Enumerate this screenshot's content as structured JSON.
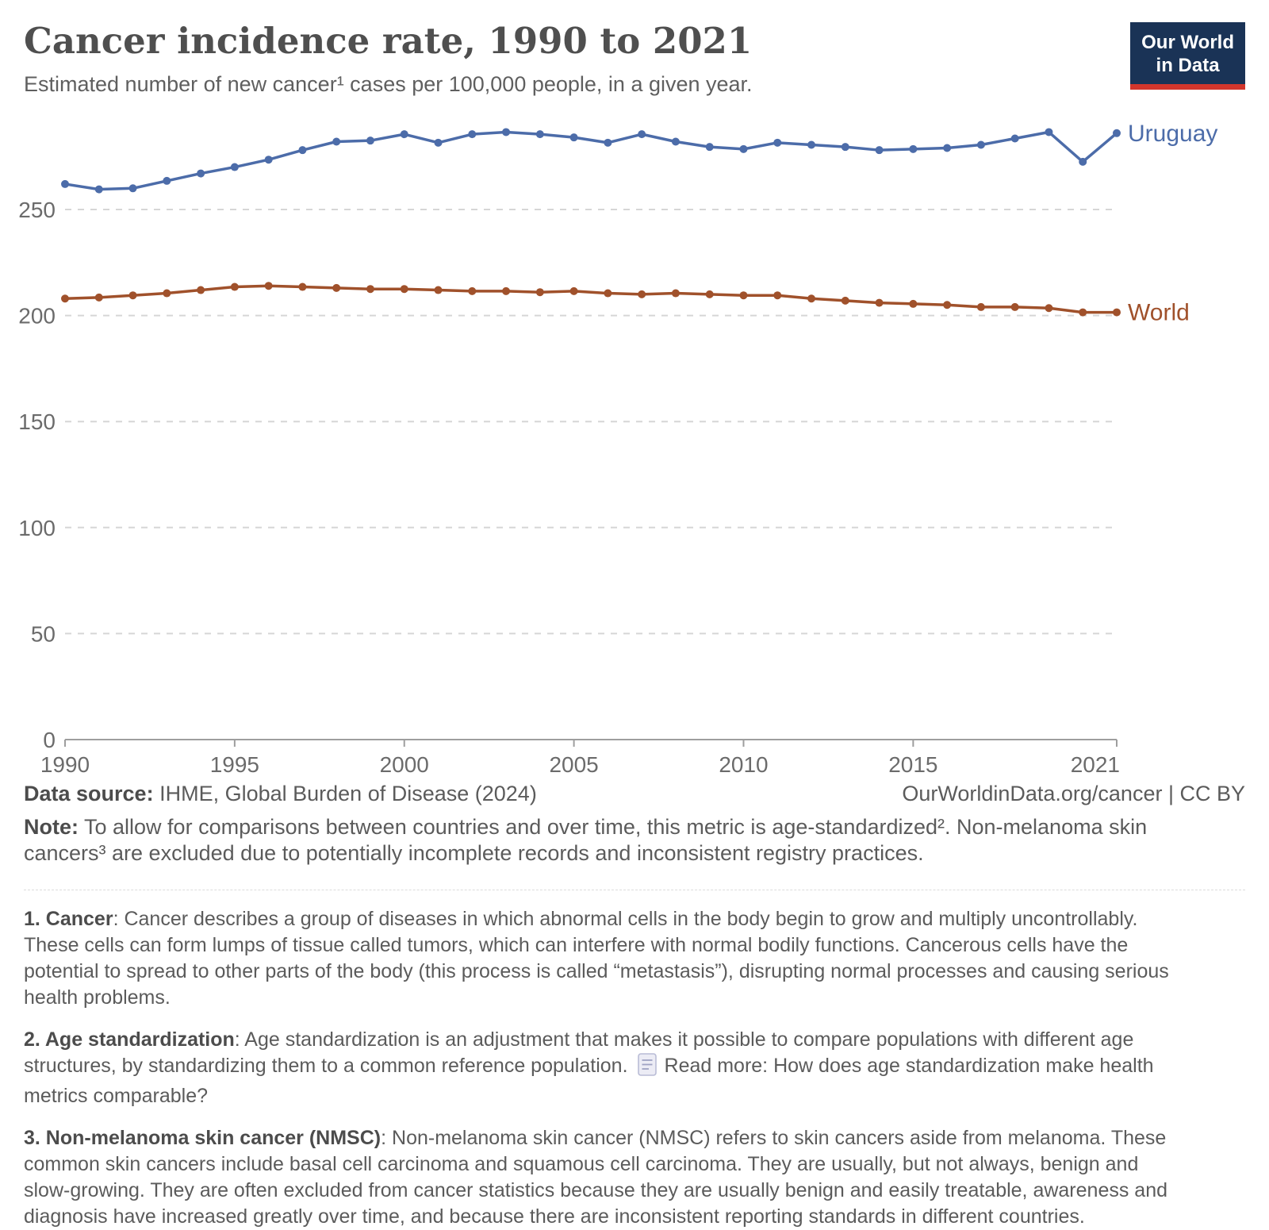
{
  "header": {
    "title": "Cancer incidence rate, 1990 to 2021",
    "subtitle": "Estimated number of new cancer¹ cases per 100,000 people, in a given year.",
    "logo": {
      "line1": "Our World",
      "line2": "in Data",
      "bg_color": "#1a3356",
      "accent_color": "#d2362c"
    }
  },
  "chart_data": {
    "type": "line",
    "title": "Cancer incidence rate, 1990 to 2021",
    "xlabel": "",
    "ylabel": "",
    "x": [
      1990,
      1991,
      1992,
      1993,
      1994,
      1995,
      1996,
      1997,
      1998,
      1999,
      2000,
      2001,
      2002,
      2003,
      2004,
      2005,
      2006,
      2007,
      2008,
      2009,
      2010,
      2011,
      2012,
      2013,
      2014,
      2015,
      2016,
      2017,
      2018,
      2019,
      2020,
      2021
    ],
    "series": [
      {
        "name": "Uruguay",
        "color": "#4C6CA9",
        "values": [
          262,
          259.5,
          260,
          263.5,
          267,
          270,
          273.5,
          278,
          282,
          282.5,
          285.5,
          281.5,
          285.5,
          286.5,
          285.5,
          284,
          281.5,
          285.5,
          282,
          279.5,
          278.5,
          281.5,
          280.5,
          279.5,
          278,
          278.5,
          279,
          280.5,
          283.5,
          286.5,
          272.5,
          286
        ]
      },
      {
        "name": "World",
        "color": "#A0512B",
        "values": [
          208,
          208.5,
          209.5,
          210.5,
          212,
          213.5,
          214,
          213.5,
          213,
          212.5,
          212.5,
          212,
          211.5,
          211.5,
          211,
          211.5,
          210.5,
          210,
          210.5,
          210,
          209.5,
          209.5,
          208,
          207,
          206,
          205.5,
          205,
          204,
          204,
          203.5,
          201.5,
          201.5
        ]
      }
    ],
    "x_ticks": [
      1990,
      1995,
      2000,
      2005,
      2010,
      2015,
      2021
    ],
    "y_ticks": [
      0,
      50,
      100,
      150,
      200,
      250
    ],
    "ylim": [
      0,
      295
    ],
    "grid": "horizontal dashed",
    "grid_color": "#d6d6d6",
    "legend_position": "right end-of-line labels"
  },
  "footer": {
    "source_label": "Data source:",
    "source_value": "IHME, Global Burden of Disease (2024)",
    "attribution": "OurWorldinData.org/cancer | CC BY",
    "note_label": "Note:",
    "note_text": " To allow for comparisons between countries and over time, this metric is age-standardized². Non-melanoma skin cancers³ are excluded due to potentially incomplete records and inconsistent registry practices."
  },
  "footnotes": [
    {
      "bold": "1. Cancer",
      "text": ": Cancer describes a group of diseases in which abnormal cells in the body begin to grow and multiply uncontrollably. These cells can form lumps of tissue called tumors, which can interfere with normal bodily functions. Cancerous cells have the potential to spread to other parts of the body (this process is called “metastasis”), disrupting normal processes and causing serious health problems."
    },
    {
      "bold": "2. Age standardization",
      "text": ": Age standardization is an adjustment that makes it possible to compare populations with different age structures, by standardizing them to a common reference population.",
      "readmore": "Read more: How does age standardization make health metrics comparable?"
    },
    {
      "bold": "3. Non-melanoma skin cancer (NMSC)",
      "text": ": Non-melanoma skin cancer (NMSC) refers to skin cancers aside from melanoma. These common skin cancers include basal cell carcinoma and squamous cell carcinoma. They are usually, but not always, benign and slow-growing. They are often excluded from cancer statistics because they are usually benign and easily treatable, awareness and diagnosis have increased greatly over time, and because there are inconsistent reporting standards in different countries."
    }
  ]
}
